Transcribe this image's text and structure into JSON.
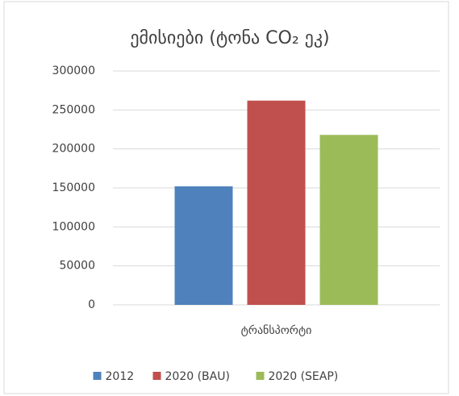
{
  "chart_data": {
    "type": "bar",
    "title": "ემისიები (ტონა CO₂ ეკ)",
    "categories": [
      "ტრანსპორტი"
    ],
    "series": [
      {
        "name": "2012",
        "color": "#4f81bd",
        "values": [
          152000
        ]
      },
      {
        "name": "2020 (BAU)",
        "color": "#c0504d",
        "values": [
          262000
        ]
      },
      {
        "name": "2020 (SEAP)",
        "color": "#9bbb59",
        "values": [
          218000
        ]
      }
    ],
    "ylim": [
      0,
      300000
    ],
    "yticks": [
      0,
      50000,
      100000,
      150000,
      200000,
      250000,
      300000
    ],
    "grid": true,
    "legend": "bottom"
  }
}
